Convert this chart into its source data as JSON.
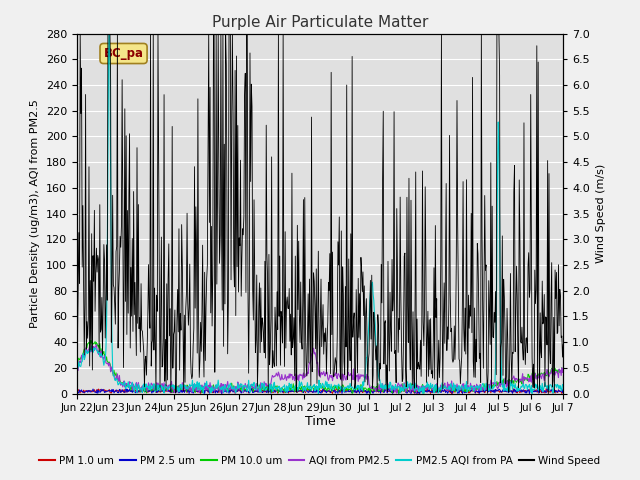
{
  "title": "Purple Air Particulate Matter",
  "ylabel_left": "Particle Density (ug/m3), AQI from PM2.5",
  "ylabel_right": "Wind Speed (m/s)",
  "xlabel": "Time",
  "ylim_left": [
    0,
    280
  ],
  "ylim_right": [
    0,
    7.0
  ],
  "yticks_left": [
    0,
    20,
    40,
    60,
    80,
    100,
    120,
    140,
    160,
    180,
    200,
    220,
    240,
    260,
    280
  ],
  "yticks_right": [
    0.0,
    0.5,
    1.0,
    1.5,
    2.0,
    2.5,
    3.0,
    3.5,
    4.0,
    4.5,
    5.0,
    5.5,
    6.0,
    6.5,
    7.0
  ],
  "annotation_text": "BC_pa",
  "bg_color": "#f0f0f0",
  "plot_bg_color": "#e0e0e0",
  "colors": {
    "pm1": "#cc0000",
    "pm25": "#0000cc",
    "pm10": "#00cc00",
    "aqi_pm25": "#9933cc",
    "pm25_aqi_pa": "#00cccc",
    "wind": "#000000"
  },
  "legend_labels": [
    "PM 1.0 um",
    "PM 2.5 um",
    "PM 10.0 um",
    "AQI from PM2.5",
    "PM2.5 AQI from PA",
    "Wind Speed"
  ],
  "xtick_labels": [
    "Jun 22",
    "Jun 23",
    "Jun 24",
    "Jun 25",
    "Jun 26",
    "Jun 27",
    "Jun 28",
    "Jun 29",
    "Jun 30",
    "Jul 1",
    "Jul 2",
    "Jul 3",
    "Jul 4",
    "Jul 5",
    "Jul 6",
    "Jul 7"
  ],
  "n_points": 720,
  "seed": 42
}
